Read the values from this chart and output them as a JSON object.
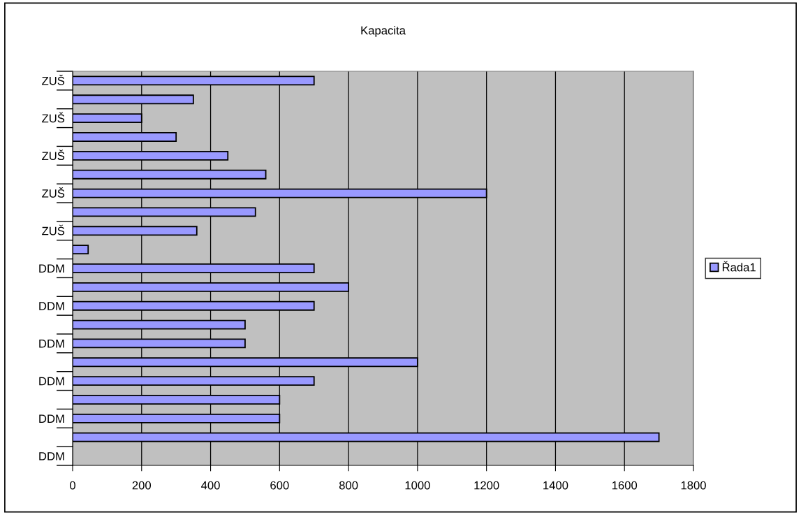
{
  "chart_data": {
    "type": "bar",
    "orientation": "horizontal",
    "title": "Kapacita",
    "categories": [
      "ZUŠ",
      null,
      "ZUŠ",
      null,
      "ZUŠ",
      null,
      "ZUŠ",
      null,
      "ZUŠ",
      null,
      "DDM",
      null,
      "DDM",
      null,
      "DDM",
      null,
      "DDM",
      null,
      "DDM",
      null,
      "DDM"
    ],
    "series": [
      {
        "name": "Řada1",
        "color": "#9999ff",
        "values": [
          700,
          350,
          200,
          300,
          450,
          560,
          1200,
          530,
          360,
          45,
          700,
          800,
          700,
          500,
          500,
          1000,
          700,
          600,
          600,
          1700,
          null
        ]
      }
    ],
    "xlim": [
      0,
      1800
    ],
    "xticks": [
      0,
      200,
      400,
      600,
      800,
      1000,
      1200,
      1400,
      1600,
      1800
    ],
    "grid": "x",
    "legend": "right"
  }
}
